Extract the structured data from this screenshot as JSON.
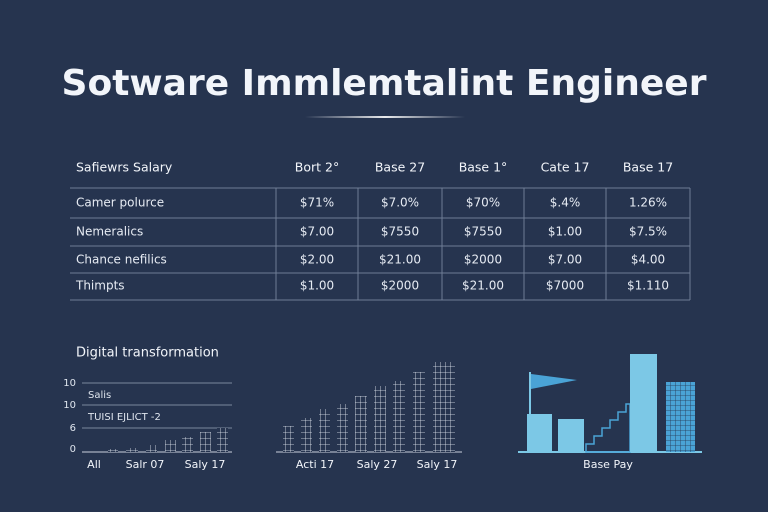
{
  "header": {
    "title": "Sotware Immlemtalint Engineer"
  },
  "table": {
    "columns": [
      "Safiewrs Salary",
      "Bort 2°",
      "Base 27",
      "Base 1°",
      "Cate 17",
      "Base 17"
    ],
    "rows": [
      [
        "Camer polurce",
        "$71%",
        "$7.0%",
        "$70%",
        "$.4%",
        "1.26%"
      ],
      [
        "Nemeralics",
        "$7.00",
        "$7550",
        "$7550",
        "$1.00",
        "$7.5%"
      ],
      [
        "Chance nefilics",
        "$2.00",
        "$21.00",
        "$2000",
        "$7.00",
        "$4.00"
      ],
      [
        "Thimpts",
        "$1.00",
        "$2000",
        "$21.00",
        "$7000",
        "$1.110"
      ]
    ]
  },
  "charts": {
    "title": "Digital transformation",
    "left": {
      "yticks": [
        "10",
        "10",
        "6",
        "0"
      ],
      "legend": [
        "Salis",
        "TUISI EJLICT -2"
      ],
      "xlabels": [
        "All",
        "Salr 07",
        "Saly 17"
      ]
    },
    "middle": {
      "xlabels": [
        "Acti 17",
        "Saly 27",
        "Saly 17"
      ]
    },
    "right": {
      "xlabel": "Base Pay"
    }
  }
}
